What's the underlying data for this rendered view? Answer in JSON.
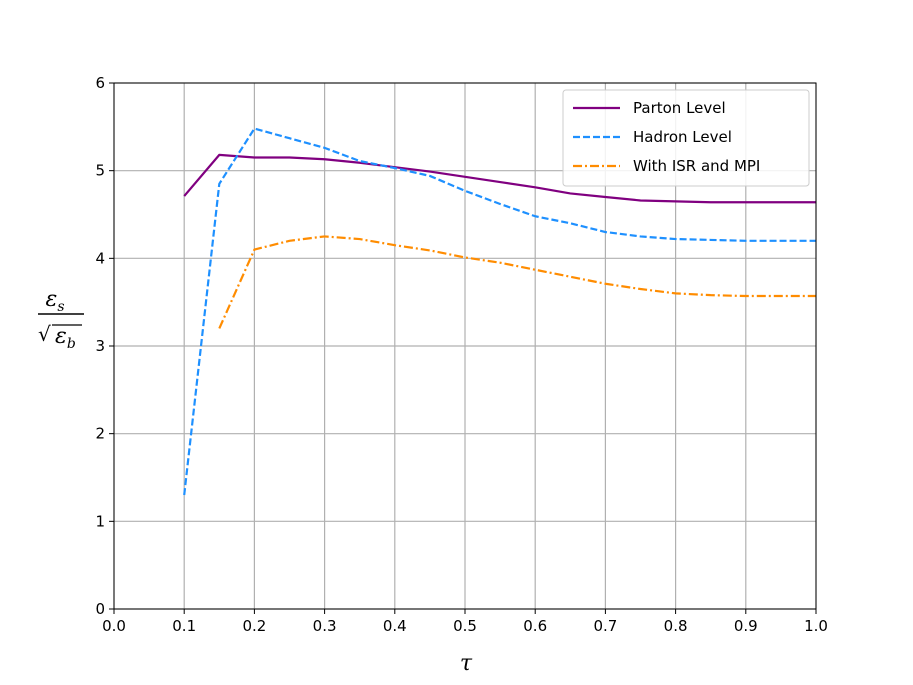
{
  "chart_data": {
    "type": "line",
    "xlabel": "τ",
    "ylabel": {
      "numerator": "ε",
      "numerator_sub": "s",
      "denominator": "ε",
      "denominator_sub": "b"
    },
    "xlim": [
      0.0,
      1.0
    ],
    "ylim": [
      0,
      6
    ],
    "xticks": [
      "0.0",
      "0.1",
      "0.2",
      "0.3",
      "0.4",
      "0.5",
      "0.6",
      "0.7",
      "0.8",
      "0.9",
      "1.0"
    ],
    "yticks": [
      "0",
      "1",
      "2",
      "3",
      "4",
      "5",
      "6"
    ],
    "grid": true,
    "legend_position": "top-right",
    "series": [
      {
        "name": "Parton Level",
        "color": "#800080",
        "style": "solid",
        "x": [
          0.1,
          0.15,
          0.2,
          0.25,
          0.3,
          0.35,
          0.4,
          0.45,
          0.5,
          0.55,
          0.6,
          0.65,
          0.7,
          0.75,
          0.8,
          0.85,
          0.9,
          0.95,
          1.0
        ],
        "y": [
          4.71,
          5.18,
          5.15,
          5.15,
          5.13,
          5.09,
          5.04,
          4.99,
          4.93,
          4.87,
          4.81,
          4.74,
          4.7,
          4.66,
          4.65,
          4.64,
          4.64,
          4.64,
          4.64
        ]
      },
      {
        "name": "Hadron Level",
        "color": "#1e90ff",
        "style": "dashed",
        "x": [
          0.1,
          0.15,
          0.2,
          0.25,
          0.3,
          0.35,
          0.4,
          0.45,
          0.5,
          0.55,
          0.6,
          0.65,
          0.7,
          0.75,
          0.8,
          0.85,
          0.9,
          0.95,
          1.0
        ],
        "y": [
          1.3,
          4.85,
          5.48,
          5.37,
          5.26,
          5.11,
          5.03,
          4.94,
          4.77,
          4.62,
          4.48,
          4.4,
          4.3,
          4.25,
          4.22,
          4.21,
          4.2,
          4.2,
          4.2
        ]
      },
      {
        "name": "With ISR and MPI",
        "color": "#ff8c00",
        "style": "dashdot",
        "x": [
          0.15,
          0.2,
          0.25,
          0.3,
          0.35,
          0.4,
          0.45,
          0.5,
          0.55,
          0.6,
          0.65,
          0.7,
          0.75,
          0.8,
          0.85,
          0.9,
          0.95,
          1.0
        ],
        "y": [
          3.2,
          4.1,
          4.2,
          4.25,
          4.22,
          4.15,
          4.09,
          4.01,
          3.95,
          3.87,
          3.79,
          3.71,
          3.65,
          3.6,
          3.58,
          3.57,
          3.57,
          3.57
        ]
      }
    ]
  }
}
